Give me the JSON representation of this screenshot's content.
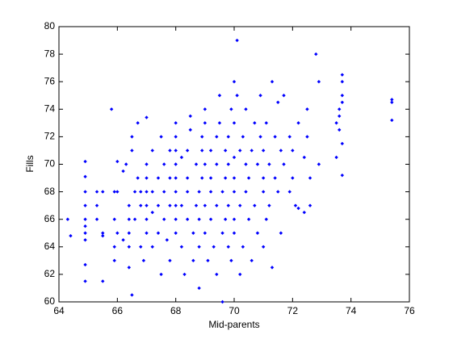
{
  "chart_data": {
    "type": "scatter",
    "xlabel": "Mid-parents",
    "ylabel": "Fills",
    "color": "#0000ff",
    "xlim": [
      64,
      76
    ],
    "xticks": [
      64,
      66,
      68,
      70,
      72,
      74,
      76
    ],
    "ylim": [
      60,
      80
    ],
    "yticks": [
      60,
      62,
      64,
      66,
      68,
      70,
      72,
      74,
      76,
      78,
      80
    ],
    "x": [
      64.3,
      64.4,
      64.9,
      64.9,
      64.9,
      64.9,
      64.9,
      64.9,
      64.9,
      64.9,
      64.9,
      64.9,
      65.3,
      65.3,
      65.3,
      65.5,
      65.5,
      65.5,
      65.5,
      65.8,
      65.9,
      65.9,
      65.9,
      65.9,
      66.0,
      66.0,
      66.0,
      66.2,
      66.2,
      66.3,
      66.4,
      66.4,
      66.4,
      66.4,
      66.4,
      66.5,
      66.5,
      66.5,
      66.6,
      66.6,
      66.7,
      66.7,
      66.8,
      66.8,
      66.8,
      66.9,
      67.0,
      67.0,
      67.0,
      67.0,
      67.0,
      67.0,
      67.0,
      67.2,
      67.2,
      67.2,
      67.2,
      67.4,
      67.4,
      67.4,
      67.5,
      67.5,
      67.6,
      67.6,
      67.6,
      67.7,
      67.8,
      67.8,
      67.8,
      67.8,
      68.0,
      68.0,
      68.0,
      68.0,
      68.0,
      68.0,
      68.0,
      68.0,
      68.0,
      68.2,
      68.2,
      68.2,
      68.3,
      68.4,
      68.4,
      68.4,
      68.4,
      68.5,
      68.5,
      68.6,
      68.6,
      68.7,
      68.7,
      68.8,
      68.8,
      68.8,
      68.8,
      68.9,
      68.9,
      68.9,
      69.0,
      69.0,
      69.0,
      69.0,
      69.0,
      69.1,
      69.2,
      69.2,
      69.2,
      69.2,
      69.3,
      69.4,
      69.4,
      69.4,
      69.4,
      69.5,
      69.5,
      69.6,
      69.6,
      69.6,
      69.7,
      69.7,
      69.7,
      69.8,
      69.8,
      69.8,
      69.8,
      69.9,
      69.9,
      70.0,
      70.0,
      70.0,
      70.0,
      70.0,
      70.0,
      70.0,
      70.1,
      70.1,
      70.2,
      70.2,
      70.2,
      70.3,
      70.3,
      70.4,
      70.4,
      70.4,
      70.5,
      70.5,
      70.6,
      70.6,
      70.7,
      70.7,
      70.8,
      70.8,
      70.9,
      70.9,
      71.0,
      71.0,
      71.0,
      71.0,
      71.1,
      71.1,
      71.2,
      71.2,
      71.3,
      71.3,
      71.4,
      71.4,
      71.5,
      71.5,
      71.6,
      71.6,
      71.7,
      71.7,
      71.9,
      71.9,
      72.0,
      72.0,
      72.1,
      72.2,
      72.2,
      72.4,
      72.4,
      72.5,
      72.5,
      72.6,
      72.6,
      72.8,
      72.9,
      72.9,
      73.5,
      73.6,
      73.6,
      73.6,
      73.7,
      73.7,
      73.7,
      73.7,
      73.7,
      73.5,
      73.7,
      75.4,
      75.4,
      75.4
    ],
    "values": [
      66,
      64.8,
      70.2,
      69.1,
      68,
      67,
      66,
      65.5,
      65,
      64.5,
      62.7,
      61.5,
      68,
      67,
      66,
      61.5,
      64.8,
      65,
      68,
      74,
      68,
      66,
      64,
      63,
      70.2,
      68,
      65,
      64.5,
      69.5,
      70,
      67,
      66,
      65,
      64,
      62.5,
      60.5,
      71,
      72,
      66,
      68,
      69,
      73,
      68,
      67,
      64,
      63,
      65,
      66,
      67,
      68,
      69,
      70,
      73.4,
      64,
      66.5,
      68,
      71,
      69,
      67,
      65,
      62,
      72,
      70,
      68,
      66,
      64.5,
      63,
      67,
      69,
      71,
      65,
      66,
      67,
      68,
      69,
      70,
      71,
      72,
      73,
      64,
      67,
      70.5,
      62,
      66,
      68,
      69,
      71,
      72.5,
      73.5,
      63,
      65,
      67,
      70,
      61,
      64,
      66,
      68,
      69,
      71,
      72,
      65,
      67,
      70,
      73,
      74,
      63,
      66,
      68,
      69,
      71,
      64,
      62,
      67,
      70,
      72,
      73,
      75,
      60,
      65,
      68,
      66,
      69,
      71,
      64,
      67,
      70,
      72,
      74,
      63,
      65,
      66,
      68,
      69,
      70.5,
      73,
      76,
      79,
      75,
      62,
      67,
      71,
      64,
      72,
      68,
      70,
      74,
      66,
      69,
      63,
      71,
      67,
      73,
      65,
      70,
      72,
      75,
      64,
      68,
      69,
      71,
      66,
      73,
      67,
      70,
      62.5,
      76,
      69,
      72,
      68,
      74.5,
      65,
      71,
      70,
      75,
      68,
      72,
      71,
      69,
      67,
      66.8,
      73,
      70.5,
      66.5,
      72,
      74,
      69,
      67,
      78,
      76,
      70,
      73,
      72.5,
      73.5,
      74,
      75,
      76,
      76.5,
      74.5,
      69.2,
      70.5,
      71.5,
      74.5,
      74.7,
      73.2
    ]
  }
}
